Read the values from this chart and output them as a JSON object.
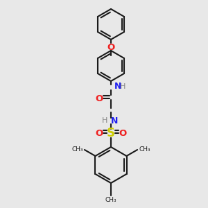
{
  "bg_color": "#e8e8e8",
  "bond_color": "#1a1a1a",
  "n_color": "#2020ee",
  "o_color": "#ee2020",
  "s_color": "#cccc00",
  "h_color": "#888888",
  "lw": 1.5,
  "figsize": [
    3.0,
    3.0
  ],
  "dpi": 100,
  "xlim": [
    0,
    300
  ],
  "ylim": [
    0,
    300
  ]
}
